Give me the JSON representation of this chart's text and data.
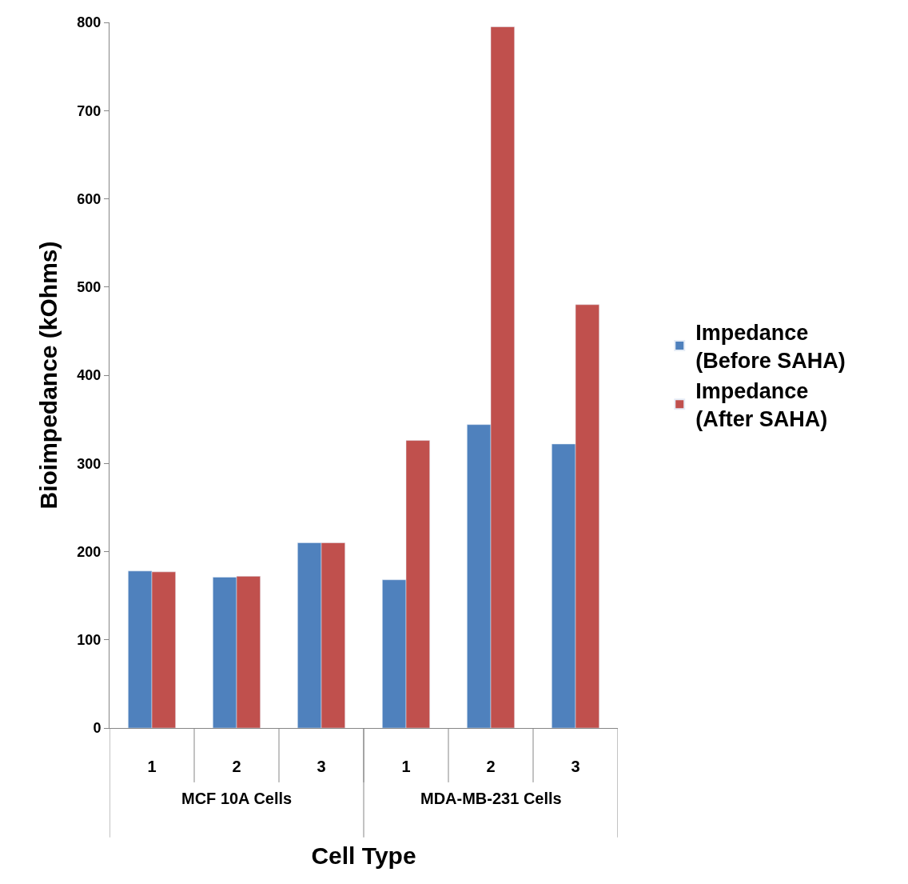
{
  "chart_data": {
    "type": "bar",
    "xlabel": "Cell Type",
    "ylabel": "Bioimpedance (kOhms)",
    "categories": [
      "1",
      "2",
      "3",
      "1",
      "2",
      "3"
    ],
    "series": [
      {
        "name": "Impedance (Before SAHA)",
        "color": "#4f81bd",
        "values": [
          178,
          171,
          210,
          168,
          344,
          322
        ]
      },
      {
        "name": "Impedance (After SAHA)",
        "color": "#c0504d",
        "values": [
          177,
          172,
          210,
          326,
          795,
          480
        ]
      }
    ],
    "annotations": [
      "MCF 10A Cells",
      "MDA-MB-231 Cells"
    ],
    "ylim": [
      0,
      800
    ],
    "yticks": [
      0,
      100,
      200,
      300,
      400,
      500,
      600,
      700,
      800
    ],
    "legend": "right"
  }
}
